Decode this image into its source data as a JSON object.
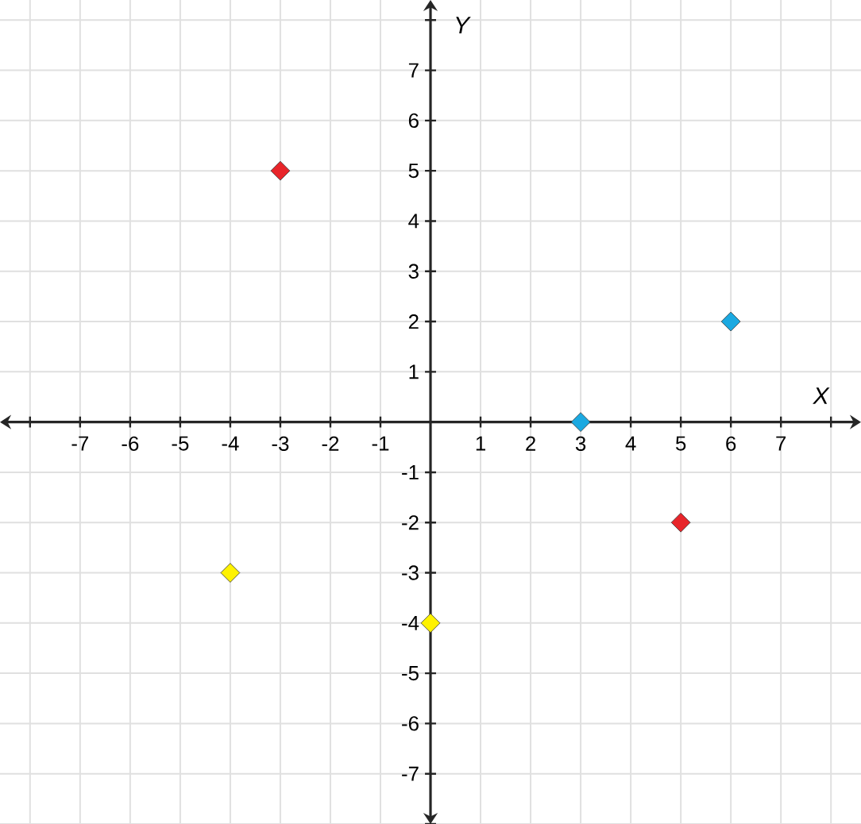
{
  "chart_data": {
    "type": "scatter",
    "xlabel": "X",
    "ylabel": "Y",
    "xlim": [
      -8.6,
      8.6
    ],
    "ylim": [
      -8,
      8.4
    ],
    "xticks": [
      {
        "value": -8,
        "label": null
      },
      -7,
      -6,
      -5,
      -4,
      -3,
      -2,
      -1,
      1,
      2,
      3,
      4,
      5,
      6,
      7,
      {
        "value": 8,
        "label": null
      }
    ],
    "yticks": [
      {
        "value": -8,
        "label": null
      },
      -7,
      -6,
      -5,
      -4,
      -3,
      -2,
      -1,
      1,
      2,
      3,
      4,
      5,
      6,
      7,
      {
        "value": 8,
        "label": null
      }
    ],
    "grid": true,
    "marker": "diamond",
    "series": [
      {
        "color": "#e8252a",
        "x": [
          -3,
          5
        ],
        "values": [
          5,
          -2
        ]
      },
      {
        "color": "#1ba9e1",
        "x": [
          3,
          6
        ],
        "values": [
          0,
          2
        ]
      },
      {
        "color": "#fff200",
        "x": [
          -4,
          0
        ],
        "values": [
          -3,
          -4
        ]
      }
    ]
  }
}
